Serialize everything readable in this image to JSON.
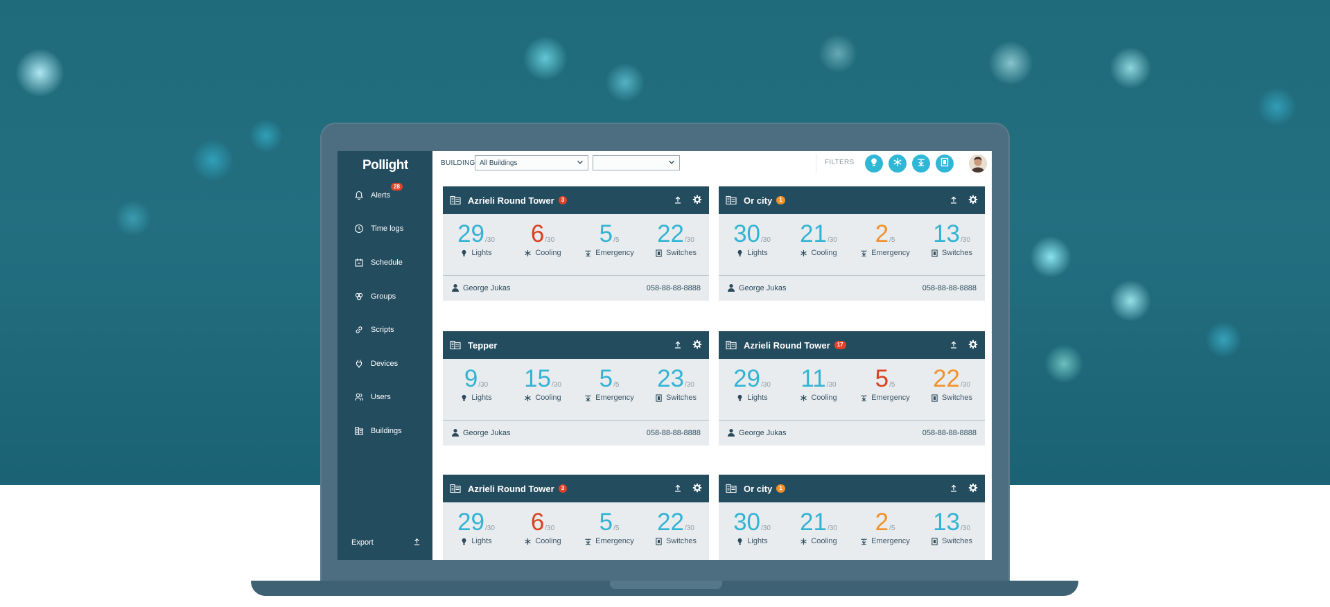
{
  "app": {
    "logo": "Pollight"
  },
  "sidebar": {
    "items": [
      {
        "label": "Alerts",
        "icon": "bell-icon",
        "badge": "28"
      },
      {
        "label": "Time logs",
        "icon": "clock-icon"
      },
      {
        "label": "Schedule",
        "icon": "calendar-icon"
      },
      {
        "label": "Groups",
        "icon": "groups-icon"
      },
      {
        "label": "Scripts",
        "icon": "link-icon"
      },
      {
        "label": "Devices",
        "icon": "plug-icon"
      },
      {
        "label": "Users",
        "icon": "users-icon"
      },
      {
        "label": "Buildings",
        "icon": "building-icon"
      }
    ],
    "export_label": "Export"
  },
  "topbar": {
    "building_label": "BUILDING",
    "building_select_value": "All Buildings",
    "second_select_value": "",
    "filters_label": "FILTERS",
    "filter_icons": [
      "bulb-icon",
      "snowflake-icon",
      "emergency-icon",
      "switch-icon"
    ]
  },
  "colors": {
    "sidebar": "#244c5f",
    "accent_blue": "#33b3d3",
    "alert_red": "#d8401f",
    "warn_orange": "#f0922b"
  },
  "cards": [
    {
      "title": "Azrieli Round Tower",
      "badge": "3",
      "badge_color": "red",
      "stats": [
        {
          "value": "29",
          "total": "/30",
          "label": "Lights",
          "color": "blue"
        },
        {
          "value": "6",
          "total": "/30",
          "label": "Cooling",
          "color": "red"
        },
        {
          "value": "5",
          "total": "/5",
          "label": "Emergency",
          "color": "blue"
        },
        {
          "value": "22",
          "total": "/30",
          "label": "Switches",
          "color": "blue"
        }
      ],
      "contact": "George Jukas",
      "phone": "058-88-88-8888"
    },
    {
      "title": "Or city",
      "badge": "1",
      "badge_color": "orange",
      "stats": [
        {
          "value": "30",
          "total": "/30",
          "label": "Lights",
          "color": "blue"
        },
        {
          "value": "21",
          "total": "/30",
          "label": "Cooling",
          "color": "blue"
        },
        {
          "value": "2",
          "total": "/5",
          "label": "Emergency",
          "color": "orange"
        },
        {
          "value": "13",
          "total": "/30",
          "label": "Switches",
          "color": "blue"
        }
      ],
      "contact": "George Jukas",
      "phone": "058-88-88-8888"
    },
    {
      "title": "Tepper",
      "badge": "",
      "badge_color": "",
      "stats": [
        {
          "value": "9",
          "total": "/30",
          "label": "Lights",
          "color": "blue"
        },
        {
          "value": "15",
          "total": "/30",
          "label": "Cooling",
          "color": "blue"
        },
        {
          "value": "5",
          "total": "/5",
          "label": "Emergency",
          "color": "blue"
        },
        {
          "value": "23",
          "total": "/30",
          "label": "Switches",
          "color": "blue"
        }
      ],
      "contact": "George Jukas",
      "phone": "058-88-88-8888"
    },
    {
      "title": "Azrieli Round Tower",
      "badge": "17",
      "badge_color": "red",
      "stats": [
        {
          "value": "29",
          "total": "/30",
          "label": "Lights",
          "color": "blue"
        },
        {
          "value": "11",
          "total": "/30",
          "label": "Cooling",
          "color": "blue"
        },
        {
          "value": "5",
          "total": "/5",
          "label": "Emergency",
          "color": "red"
        },
        {
          "value": "22",
          "total": "/30",
          "label": "Switches",
          "color": "orange"
        }
      ],
      "contact": "George Jukas",
      "phone": "058-88-88-8888"
    },
    {
      "title": "Azrieli Round Tower",
      "badge": "3",
      "badge_color": "red",
      "stats": [
        {
          "value": "29",
          "total": "/30",
          "label": "Lights",
          "color": "blue"
        },
        {
          "value": "6",
          "total": "/30",
          "label": "Cooling",
          "color": "red"
        },
        {
          "value": "5",
          "total": "/5",
          "label": "Emergency",
          "color": "blue"
        },
        {
          "value": "22",
          "total": "/30",
          "label": "Switches",
          "color": "blue"
        }
      ],
      "contact": "",
      "phone": ""
    },
    {
      "title": "Or city",
      "badge": "1",
      "badge_color": "orange",
      "stats": [
        {
          "value": "30",
          "total": "/30",
          "label": "Lights",
          "color": "blue"
        },
        {
          "value": "21",
          "total": "/30",
          "label": "Cooling",
          "color": "blue"
        },
        {
          "value": "2",
          "total": "/5",
          "label": "Emergency",
          "color": "orange"
        },
        {
          "value": "13",
          "total": "/30",
          "label": "Switches",
          "color": "blue"
        }
      ],
      "contact": "",
      "phone": ""
    }
  ]
}
